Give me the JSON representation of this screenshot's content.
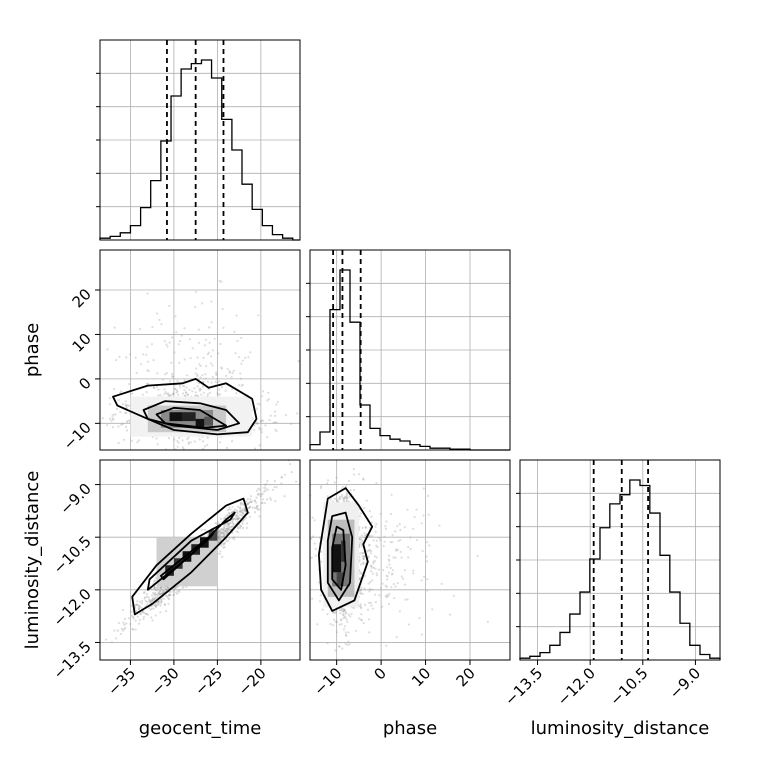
{
  "chart_data": {
    "type": "corner",
    "parameters": [
      "geocent_time",
      "phase",
      "luminosity_distance"
    ],
    "axis_labels": {
      "x": [
        "geocent_time",
        "phase",
        "luminosity_distance"
      ],
      "y": [
        "",
        "phase",
        "luminosity_distance"
      ]
    },
    "ranges": {
      "geocent_time": [
        -38.5,
        -15.5
      ],
      "phase": [
        -16,
        29
      ],
      "luminosity_distance": [
        -14.0,
        -8.3
      ]
    },
    "ticks": {
      "geocent_time": [
        -35,
        -30,
        -25,
        -20
      ],
      "phase": [
        -10,
        0,
        10,
        20
      ],
      "luminosity_distance": [
        -13.5,
        -12.0,
        -10.5,
        -9.0
      ]
    },
    "tick_labels": {
      "geocent_time": [
        "−35",
        "−30",
        "−25",
        "−20"
      ],
      "phase": [
        "−10",
        "0",
        "10",
        "20"
      ],
      "luminosity_distance": [
        "−13.5",
        "−12.0",
        "−10.5",
        "−9.0"
      ]
    },
    "grid": true,
    "colors": {
      "line": "#000000",
      "scatter": "#9e9e9e",
      "grid": "#b0b0b0"
    },
    "histograms": {
      "geocent_time": {
        "bin_edges": [
          -38.5,
          -37.33,
          -36.17,
          -35.0,
          -33.83,
          -32.67,
          -31.5,
          -30.33,
          -29.17,
          -28.0,
          -26.83,
          -25.67,
          -24.5,
          -23.33,
          -22.17,
          -21.0,
          -19.83,
          -18.67,
          -17.5,
          -16.33,
          -15.5
        ],
        "counts": [
          1,
          2,
          4,
          8,
          18,
          33,
          55,
          80,
          95,
          98,
          100,
          90,
          67,
          50,
          31,
          17,
          8,
          3,
          1,
          0
        ],
        "quantiles": [
          -30.8,
          -27.5,
          -24.3
        ]
      },
      "phase": {
        "bin_edges": [
          -16,
          -13.75,
          -11.5,
          -9.25,
          -7.0,
          -4.75,
          -2.5,
          -0.25,
          2.0,
          4.25,
          6.5,
          8.75,
          11.0,
          13.25,
          15.5,
          17.75,
          20.0,
          22.25,
          24.5,
          26.75,
          29.0
        ],
        "counts": [
          3,
          10,
          78,
          100,
          71,
          25,
          12,
          8,
          6,
          5,
          3,
          2,
          1,
          1,
          0.5,
          0.5,
          0,
          0,
          0,
          0
        ],
        "quantiles": [
          -10.8,
          -8.7,
          -4.6
        ]
      },
      "luminosity_distance": {
        "bin_edges": [
          -14.0,
          -13.72,
          -13.43,
          -13.15,
          -12.86,
          -12.58,
          -12.29,
          -12.01,
          -11.72,
          -11.44,
          -11.15,
          -10.87,
          -10.58,
          -10.3,
          -10.01,
          -9.73,
          -9.44,
          -9.16,
          -8.87,
          -8.59,
          -8.3
        ],
        "counts": [
          1,
          2,
          4,
          8,
          15,
          25,
          37,
          55,
          72,
          85,
          90,
          98,
          95,
          80,
          57,
          37,
          20,
          8,
          3,
          1
        ],
        "quantiles": [
          -11.9,
          -11.1,
          -10.35
        ]
      }
    }
  }
}
